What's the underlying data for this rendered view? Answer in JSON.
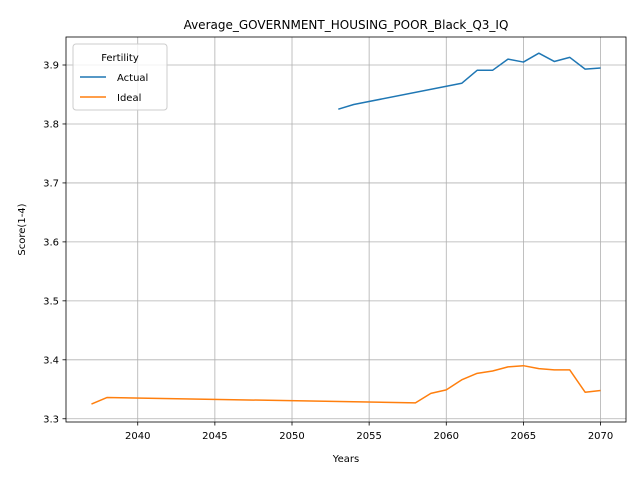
{
  "chart_data": {
    "type": "line",
    "title": "Average_GOVERNMENT_HOUSING_POOR_Black_Q3_IQ",
    "xlabel": "Years",
    "ylabel": "Score(1-4)",
    "xlim": [
      2035.35,
      2071.65
    ],
    "ylim": [
      3.2945,
      3.9475
    ],
    "xticks": [
      2040,
      2045,
      2050,
      2055,
      2060,
      2065,
      2070
    ],
    "yticks": [
      3.3,
      3.4,
      3.5,
      3.6,
      3.7,
      3.8,
      3.9
    ],
    "xtick_labels": [
      "2040",
      "2045",
      "2050",
      "2055",
      "2060",
      "2065",
      "2070"
    ],
    "ytick_labels": [
      "3.3",
      "3.4",
      "3.5",
      "3.6",
      "3.7",
      "3.8",
      "3.9"
    ],
    "grid": true,
    "legend": {
      "title": "Fertility",
      "placement": "top-left"
    },
    "series": [
      {
        "name": "Actual",
        "color": "#1f77b4",
        "x": [
          2053,
          2054,
          2061,
          2062,
          2063,
          2064,
          2065,
          2066,
          2067,
          2068,
          2069,
          2070
        ],
        "y": [
          3.825,
          3.833,
          3.869,
          3.891,
          3.891,
          3.91,
          3.905,
          3.92,
          3.906,
          3.913,
          3.893,
          3.895
        ]
      },
      {
        "name": "Ideal",
        "color": "#ff7f0e",
        "x": [
          2037,
          2038,
          2058,
          2059,
          2060,
          2061,
          2062,
          2063,
          2064,
          2065,
          2066,
          2067,
          2068,
          2069,
          2070
        ],
        "y": [
          3.325,
          3.336,
          3.327,
          3.343,
          3.349,
          3.366,
          3.377,
          3.381,
          3.388,
          3.39,
          3.385,
          3.383,
          3.383,
          3.345,
          3.348
        ]
      }
    ]
  }
}
